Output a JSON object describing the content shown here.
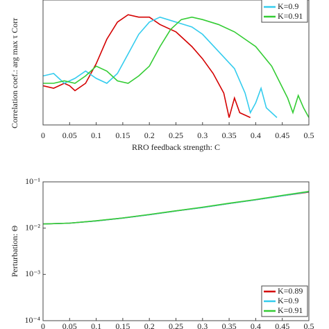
{
  "chart_data": [
    {
      "type": "line",
      "ylabel": "Correlation coef.: arg max τ Corr",
      "xlabel": "RRO feedback strength: C",
      "xlim": [
        0,
        0.5
      ],
      "xticks": [
        0,
        0.05,
        0.1,
        0.15,
        0.2,
        0.25,
        0.3,
        0.35,
        0.4,
        0.45,
        0.5
      ],
      "ylim": [
        0.03,
        0.54
      ],
      "ylog": false,
      "legend": "upper right",
      "series": [
        {
          "color": "#d40000",
          "x": [
            0,
            0.02,
            0.04,
            0.05,
            0.06,
            0.08,
            0.1,
            0.12,
            0.14,
            0.16,
            0.18,
            0.2,
            0.22,
            0.25,
            0.28,
            0.3,
            0.32,
            0.34,
            0.35,
            0.36,
            0.37,
            0.39
          ],
          "values": [
            0.19,
            0.18,
            0.2,
            0.19,
            0.17,
            0.2,
            0.28,
            0.38,
            0.45,
            0.48,
            0.47,
            0.47,
            0.44,
            0.41,
            0.35,
            0.3,
            0.24,
            0.16,
            0.06,
            0.14,
            0.08,
            0.06
          ]
        },
        {
          "name": "K=0.9",
          "color": "#33ccee",
          "x": [
            0,
            0.02,
            0.04,
            0.06,
            0.08,
            0.1,
            0.12,
            0.14,
            0.16,
            0.18,
            0.2,
            0.22,
            0.25,
            0.28,
            0.3,
            0.33,
            0.36,
            0.38,
            0.39,
            0.4,
            0.41,
            0.42,
            0.44
          ],
          "values": [
            0.23,
            0.24,
            0.2,
            0.22,
            0.25,
            0.22,
            0.2,
            0.24,
            0.32,
            0.4,
            0.45,
            0.47,
            0.45,
            0.43,
            0.4,
            0.33,
            0.26,
            0.16,
            0.08,
            0.12,
            0.18,
            0.1,
            0.06
          ]
        },
        {
          "name": "K=0.91",
          "color": "#33cc33",
          "x": [
            0,
            0.02,
            0.04,
            0.06,
            0.08,
            0.1,
            0.12,
            0.14,
            0.16,
            0.18,
            0.2,
            0.22,
            0.24,
            0.26,
            0.28,
            0.3,
            0.33,
            0.36,
            0.4,
            0.43,
            0.46,
            0.47,
            0.48,
            0.49,
            0.5
          ],
          "values": [
            0.2,
            0.2,
            0.21,
            0.2,
            0.23,
            0.27,
            0.25,
            0.21,
            0.2,
            0.23,
            0.27,
            0.35,
            0.42,
            0.46,
            0.47,
            0.46,
            0.44,
            0.41,
            0.35,
            0.27,
            0.14,
            0.08,
            0.15,
            0.1,
            0.06
          ]
        }
      ]
    },
    {
      "type": "line",
      "ylabel": "Perturbation: Θ",
      "xlim": [
        0,
        0.5
      ],
      "xticks": [
        0,
        0.05,
        0.1,
        0.15,
        0.2,
        0.25,
        0.3,
        0.35,
        0.4,
        0.45,
        0.5
      ],
      "ylim": [
        0.0001,
        0.1
      ],
      "ylog": true,
      "yticks": [
        {
          "value": 0.1,
          "label": "10⁻¹"
        },
        {
          "value": 0.01,
          "label": "10⁻²"
        },
        {
          "value": 0.001,
          "label": "10⁻³"
        },
        {
          "value": 0.0001,
          "label": "10⁻⁴"
        }
      ],
      "legend": "lower right",
      "series": [
        {
          "name": "K=0.89",
          "color": "#d40000",
          "x": [
            0,
            0.05,
            0.1,
            0.15,
            0.2,
            0.25,
            0.3,
            0.35,
            0.4,
            0.45,
            0.5
          ],
          "values": [
            0.0123,
            0.0128,
            0.0143,
            0.0165,
            0.0195,
            0.0235,
            0.028,
            0.034,
            0.041,
            0.05,
            0.06
          ]
        },
        {
          "name": "K=0.9",
          "color": "#33ccee",
          "x": [
            0,
            0.05,
            0.1,
            0.15,
            0.2,
            0.25,
            0.3,
            0.35,
            0.4,
            0.45,
            0.5
          ],
          "values": [
            0.0123,
            0.0128,
            0.0143,
            0.0165,
            0.0195,
            0.0235,
            0.028,
            0.034,
            0.041,
            0.05,
            0.061
          ]
        },
        {
          "name": "K=0.91",
          "color": "#33cc33",
          "x": [
            0,
            0.05,
            0.1,
            0.15,
            0.2,
            0.25,
            0.3,
            0.35,
            0.4,
            0.45,
            0.5
          ],
          "values": [
            0.0123,
            0.0128,
            0.0144,
            0.0166,
            0.0197,
            0.0237,
            0.0283,
            0.0345,
            0.0415,
            0.051,
            0.062
          ]
        }
      ]
    }
  ]
}
